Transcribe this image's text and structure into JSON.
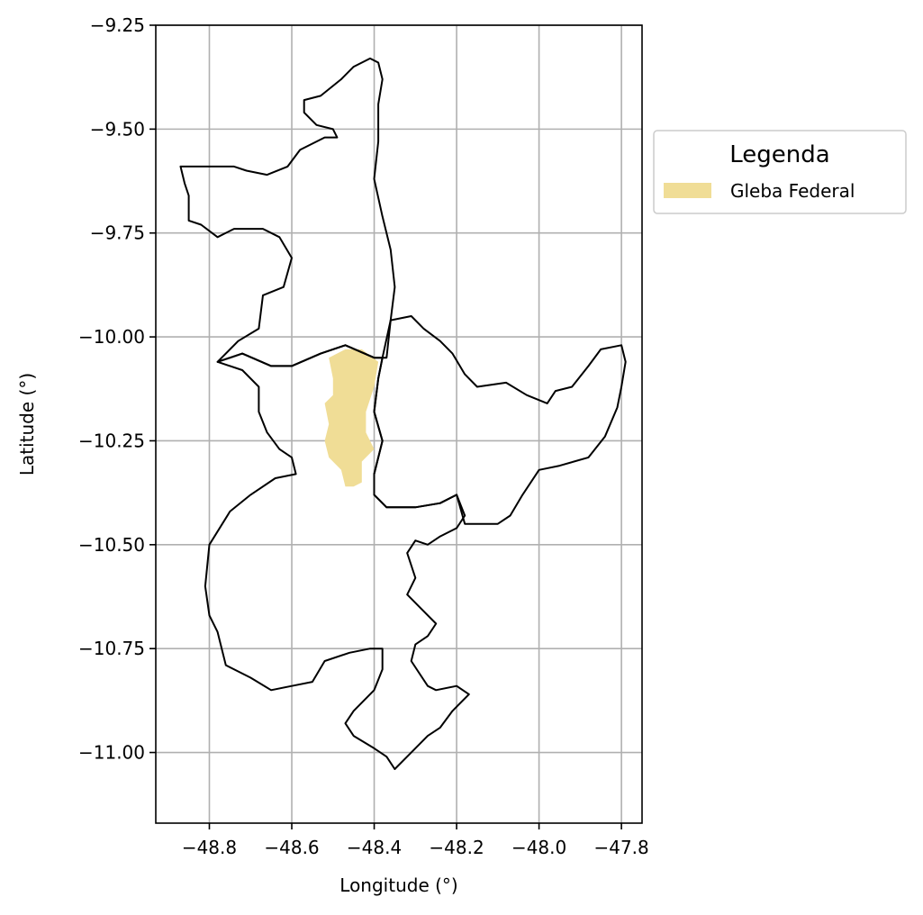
{
  "chart_data": {
    "type": "map",
    "xlabel": "Longitude (°)",
    "ylabel": "Latitude (°)",
    "xlim": [
      -48.93,
      -47.75
    ],
    "ylim": [
      -11.17,
      -9.25
    ],
    "xticks": [
      -48.8,
      -48.6,
      -48.4,
      -48.2,
      -48.0,
      -47.8
    ],
    "xtick_labels": [
      "−48.8",
      "−48.6",
      "−48.4",
      "−48.2",
      "−48.0",
      "−47.8"
    ],
    "yticks": [
      -9.25,
      -9.5,
      -9.75,
      -10.0,
      -10.25,
      -10.5,
      -10.75,
      -11.0
    ],
    "ytick_labels": [
      "−9.25",
      "−9.50",
      "−9.75",
      "−10.00",
      "−10.25",
      "−10.50",
      "−10.75",
      "−11.00"
    ],
    "grid": true,
    "legend": {
      "title": "Legenda",
      "placement": "outside-right-top",
      "entries": [
        {
          "label": "Gleba Federal",
          "color": "#f0dd96"
        }
      ]
    },
    "boundaries": [
      {
        "name": "north",
        "points": [
          [
            -48.87,
            -9.59
          ],
          [
            -48.74,
            -9.59
          ],
          [
            -48.71,
            -9.6
          ],
          [
            -48.66,
            -9.61
          ],
          [
            -48.61,
            -9.59
          ],
          [
            -48.58,
            -9.55
          ],
          [
            -48.52,
            -9.52
          ],
          [
            -48.49,
            -9.52
          ],
          [
            -48.5,
            -9.5
          ],
          [
            -48.54,
            -9.49
          ],
          [
            -48.57,
            -9.46
          ],
          [
            -48.57,
            -9.43
          ],
          [
            -48.53,
            -9.42
          ],
          [
            -48.48,
            -9.38
          ],
          [
            -48.45,
            -9.35
          ],
          [
            -48.41,
            -9.33
          ],
          [
            -48.39,
            -9.34
          ],
          [
            -48.38,
            -9.38
          ],
          [
            -48.39,
            -9.44
          ],
          [
            -48.39,
            -9.53
          ],
          [
            -48.4,
            -9.62
          ],
          [
            -48.38,
            -9.71
          ],
          [
            -48.36,
            -9.79
          ],
          [
            -48.35,
            -9.88
          ],
          [
            -48.36,
            -9.96
          ],
          [
            -48.37,
            -10.05
          ],
          [
            -48.4,
            -10.05
          ],
          [
            -48.47,
            -10.02
          ],
          [
            -48.53,
            -10.04
          ],
          [
            -48.6,
            -10.07
          ],
          [
            -48.65,
            -10.07
          ],
          [
            -48.72,
            -10.04
          ],
          [
            -48.78,
            -10.06
          ],
          [
            -48.73,
            -10.01
          ],
          [
            -48.68,
            -9.98
          ],
          [
            -48.67,
            -9.9
          ],
          [
            -48.62,
            -9.88
          ],
          [
            -48.6,
            -9.81
          ],
          [
            -48.63,
            -9.76
          ],
          [
            -48.67,
            -9.74
          ],
          [
            -48.74,
            -9.74
          ],
          [
            -48.78,
            -9.76
          ],
          [
            -48.82,
            -9.73
          ],
          [
            -48.85,
            -9.72
          ],
          [
            -48.85,
            -9.66
          ],
          [
            -48.86,
            -9.63
          ],
          [
            -48.87,
            -9.59
          ]
        ]
      },
      {
        "name": "west-central",
        "points": [
          [
            -48.78,
            -10.06
          ],
          [
            -48.72,
            -10.04
          ],
          [
            -48.65,
            -10.07
          ],
          [
            -48.6,
            -10.07
          ],
          [
            -48.53,
            -10.04
          ],
          [
            -48.47,
            -10.02
          ],
          [
            -48.4,
            -10.05
          ],
          [
            -48.38,
            -10.05
          ],
          [
            -48.39,
            -10.1
          ],
          [
            -48.4,
            -10.18
          ],
          [
            -48.38,
            -10.25
          ],
          [
            -48.4,
            -10.33
          ],
          [
            -48.4,
            -10.38
          ],
          [
            -48.37,
            -10.41
          ],
          [
            -48.3,
            -10.41
          ],
          [
            -48.24,
            -10.4
          ],
          [
            -48.2,
            -10.38
          ],
          [
            -48.18,
            -10.43
          ],
          [
            -48.2,
            -10.46
          ],
          [
            -48.24,
            -10.48
          ],
          [
            -48.27,
            -10.5
          ],
          [
            -48.3,
            -10.49
          ],
          [
            -48.32,
            -10.52
          ],
          [
            -48.3,
            -10.58
          ],
          [
            -48.32,
            -10.62
          ],
          [
            -48.28,
            -10.66
          ],
          [
            -48.25,
            -10.69
          ],
          [
            -48.27,
            -10.72
          ],
          [
            -48.3,
            -10.74
          ],
          [
            -48.31,
            -10.78
          ],
          [
            -48.27,
            -10.84
          ],
          [
            -48.25,
            -10.85
          ],
          [
            -48.2,
            -10.84
          ],
          [
            -48.17,
            -10.86
          ],
          [
            -48.21,
            -10.9
          ],
          [
            -48.24,
            -10.94
          ],
          [
            -48.27,
            -10.96
          ],
          [
            -48.31,
            -11.0
          ],
          [
            -48.35,
            -11.04
          ],
          [
            -48.37,
            -11.01
          ],
          [
            -48.4,
            -10.99
          ],
          [
            -48.45,
            -10.96
          ],
          [
            -48.47,
            -10.93
          ],
          [
            -48.45,
            -10.9
          ],
          [
            -48.4,
            -10.85
          ],
          [
            -48.38,
            -10.8
          ],
          [
            -48.38,
            -10.75
          ],
          [
            -48.41,
            -10.75
          ],
          [
            -48.46,
            -10.76
          ],
          [
            -48.52,
            -10.78
          ],
          [
            -48.55,
            -10.83
          ],
          [
            -48.6,
            -10.84
          ],
          [
            -48.65,
            -10.85
          ],
          [
            -48.7,
            -10.82
          ],
          [
            -48.76,
            -10.79
          ],
          [
            -48.78,
            -10.71
          ],
          [
            -48.8,
            -10.67
          ],
          [
            -48.81,
            -10.6
          ],
          [
            -48.8,
            -10.5
          ],
          [
            -48.75,
            -10.42
          ],
          [
            -48.7,
            -10.38
          ],
          [
            -48.64,
            -10.34
          ],
          [
            -48.59,
            -10.33
          ],
          [
            -48.6,
            -10.29
          ],
          [
            -48.63,
            -10.27
          ],
          [
            -48.66,
            -10.23
          ],
          [
            -48.68,
            -10.18
          ],
          [
            -48.68,
            -10.12
          ],
          [
            -48.72,
            -10.08
          ],
          [
            -48.78,
            -10.06
          ]
        ]
      },
      {
        "name": "east",
        "points": [
          [
            -48.36,
            -9.96
          ],
          [
            -48.31,
            -9.95
          ],
          [
            -48.28,
            -9.98
          ],
          [
            -48.24,
            -10.01
          ],
          [
            -48.21,
            -10.04
          ],
          [
            -48.18,
            -10.09
          ],
          [
            -48.15,
            -10.12
          ],
          [
            -48.08,
            -10.11
          ],
          [
            -48.03,
            -10.14
          ],
          [
            -47.98,
            -10.16
          ],
          [
            -47.96,
            -10.13
          ],
          [
            -47.92,
            -10.12
          ],
          [
            -47.88,
            -10.07
          ],
          [
            -47.85,
            -10.03
          ],
          [
            -47.8,
            -10.02
          ],
          [
            -47.79,
            -10.06
          ],
          [
            -47.8,
            -10.12
          ],
          [
            -47.81,
            -10.17
          ],
          [
            -47.84,
            -10.24
          ],
          [
            -47.88,
            -10.29
          ],
          [
            -47.95,
            -10.31
          ],
          [
            -48.0,
            -10.32
          ],
          [
            -48.04,
            -10.38
          ],
          [
            -48.07,
            -10.43
          ],
          [
            -48.1,
            -10.45
          ],
          [
            -48.18,
            -10.45
          ],
          [
            -48.2,
            -10.38
          ],
          [
            -48.24,
            -10.4
          ],
          [
            -48.3,
            -10.41
          ],
          [
            -48.37,
            -10.41
          ],
          [
            -48.4,
            -10.38
          ],
          [
            -48.4,
            -10.33
          ],
          [
            -48.38,
            -10.25
          ],
          [
            -48.4,
            -10.18
          ],
          [
            -48.39,
            -10.1
          ],
          [
            -48.38,
            -10.05
          ],
          [
            -48.36,
            -9.96
          ]
        ]
      }
    ],
    "gleba": {
      "name": "Gleba Federal",
      "color": "#f0dd96",
      "points": [
        [
          -48.51,
          -10.05
        ],
        [
          -48.47,
          -10.03
        ],
        [
          -48.43,
          -10.03
        ],
        [
          -48.39,
          -10.06
        ],
        [
          -48.4,
          -10.12
        ],
        [
          -48.42,
          -10.18
        ],
        [
          -48.42,
          -10.23
        ],
        [
          -48.4,
          -10.27
        ],
        [
          -48.43,
          -10.3
        ],
        [
          -48.43,
          -10.35
        ],
        [
          -48.45,
          -10.36
        ],
        [
          -48.47,
          -10.36
        ],
        [
          -48.48,
          -10.32
        ],
        [
          -48.51,
          -10.29
        ],
        [
          -48.52,
          -10.25
        ],
        [
          -48.51,
          -10.21
        ],
        [
          -48.52,
          -10.16
        ],
        [
          -48.5,
          -10.14
        ],
        [
          -48.5,
          -10.1
        ],
        [
          -48.51,
          -10.05
        ]
      ]
    }
  }
}
